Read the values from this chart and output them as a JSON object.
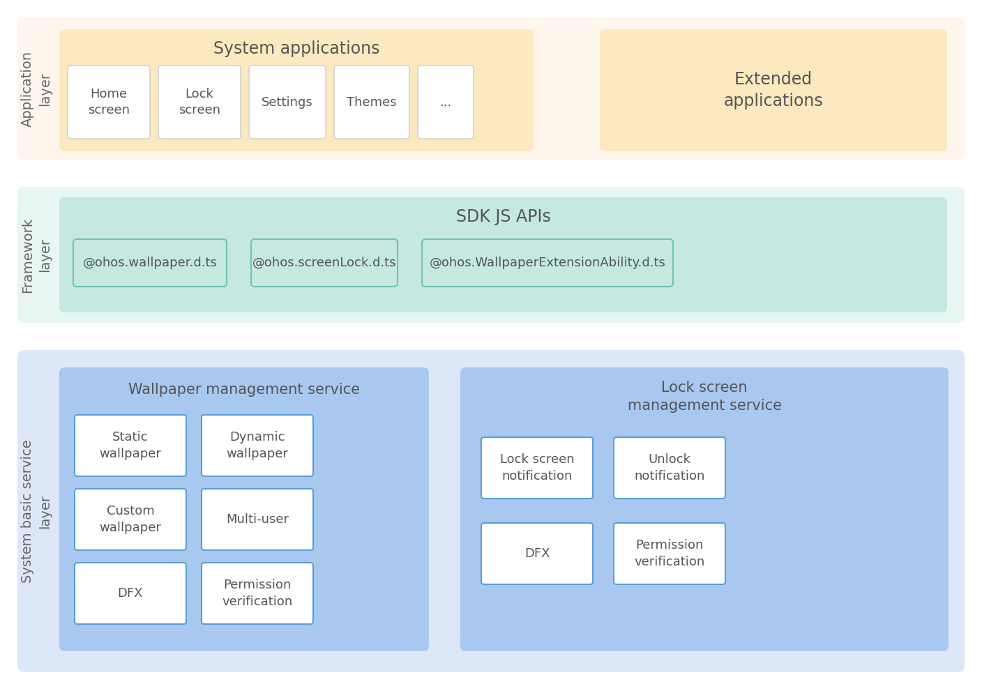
{
  "bg_color": "#ffffff",
  "app_layer": {
    "label": "Application\nlayer",
    "outer_bg": "#fef6ec",
    "inner_bg": "#fde9c0",
    "inner_title": "System applications",
    "boxes": [
      "Home\nscreen",
      "Lock\nscreen",
      "Settings",
      "Themes",
      "..."
    ],
    "box_bg": "#ffffff",
    "box_border": "#cccccc",
    "extended_bg": "#fde9c0",
    "extended_text": "Extended\napplications"
  },
  "framework_layer": {
    "label": "Framework\nlayer",
    "outer_bg": "#e8f6f3",
    "inner_bg": "#c5e8e0",
    "inner_title": "SDK JS APIs",
    "boxes": [
      "@ohos.wallpaper.d.ts",
      "@ohos.screenLock.d.ts",
      "@ohos.WallpaperExtensionAbility.d.ts"
    ],
    "box_border": "#6bc4b8"
  },
  "service_layer": {
    "label": "System basic service\nlayer",
    "outer_bg": "#dce8f8",
    "wallpaper_bg": "#a8c8f0",
    "wallpaper_title": "Wallpaper management service",
    "wallpaper_boxes": [
      "Static\nwallpaper",
      "Dynamic\nwallpaper",
      "Custom\nwallpaper",
      "Multi-user",
      "DFX",
      "Permission\nverification"
    ],
    "lock_bg": "#a8c8f0",
    "lock_title": "Lock screen\nmanagement service",
    "lock_boxes": [
      "Lock screen\nnotification",
      "Unlock\nnotification",
      "DFX",
      "Permission\nverification"
    ],
    "box_bg": "#ffffff",
    "box_border": "#5a9fd4"
  },
  "text_color": "#555555",
  "label_color": "#666666"
}
